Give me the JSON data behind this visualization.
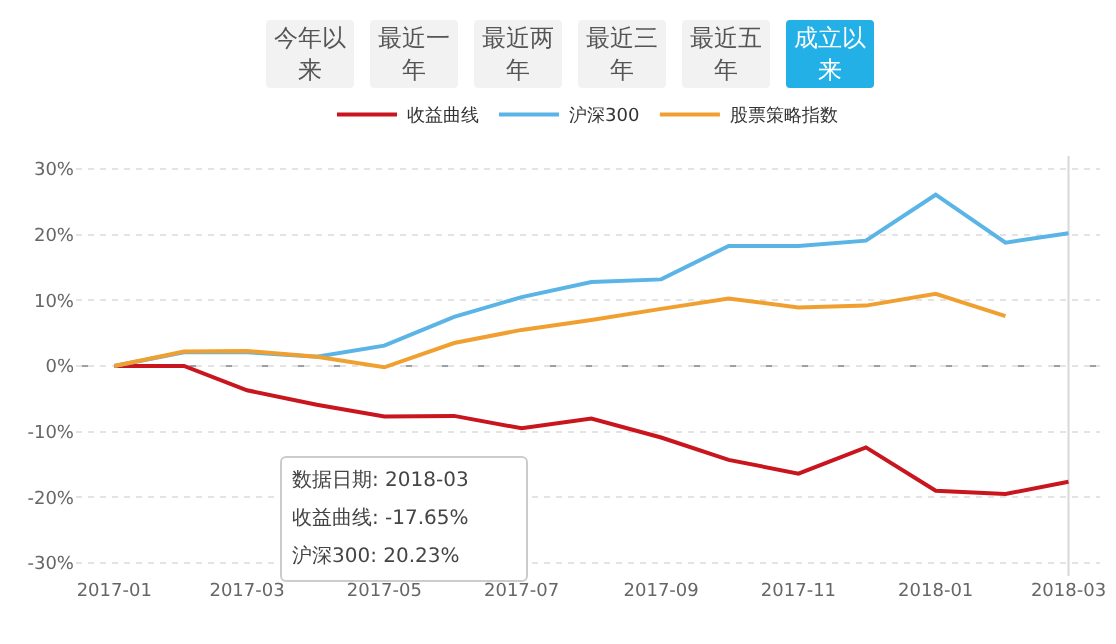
{
  "chart_data": {
    "type": "line",
    "x": [
      "2017-01",
      "2017-02",
      "2017-03",
      "2017-04",
      "2017-05",
      "2017-06",
      "2017-07",
      "2017-08",
      "2017-09",
      "2017-10",
      "2017-11",
      "2017-12",
      "2018-01",
      "2018-02",
      "2018-03"
    ],
    "series": [
      {
        "name": "收益曲线",
        "color": "#c9151e",
        "values": [
          0,
          0,
          -3.7,
          -5.9,
          -7.7,
          -7.6,
          -9.5,
          -8.0,
          -10.9,
          -14.3,
          -16.4,
          -12.4,
          -19,
          -19.5,
          -17.65
        ]
      },
      {
        "name": "沪深300",
        "color": "#5ab4e5",
        "values": [
          0,
          2.1,
          2.1,
          1.4,
          3.1,
          7.5,
          10.5,
          12.8,
          13.2,
          18.3,
          18.3,
          19.1,
          26.1,
          18.8,
          20.23
        ]
      },
      {
        "name": "股票策略指数",
        "color": "#f0a030",
        "values": [
          0,
          2.2,
          2.3,
          1.4,
          -0.2,
          3.5,
          5.5,
          7.0,
          8.7,
          10.3,
          8.9,
          9.2,
          11.0,
          7.6,
          null
        ]
      }
    ],
    "xlim": [
      "2016-12-15",
      "2018-03-15"
    ],
    "xticks": [
      {
        "value": "2017-01",
        "label": "2017-01"
      },
      {
        "value": "2017-03",
        "label": "2017-03"
      },
      {
        "value": "2017-05",
        "label": "2017-05"
      },
      {
        "value": "2017-07",
        "label": "2017-07"
      },
      {
        "value": "2017-09",
        "label": "2017-09"
      },
      {
        "value": "2017-11",
        "label": "2017-11"
      },
      {
        "value": "2018-01",
        "label": "2018-01"
      },
      {
        "value": "2018-03",
        "label": "2018-03"
      }
    ],
    "ylim": [
      -32,
      32
    ],
    "yticks": [
      {
        "value": -30,
        "label": "-30%"
      },
      {
        "value": -20,
        "label": "-20%"
      },
      {
        "value": -10,
        "label": "-10%"
      },
      {
        "value": 0,
        "label": "0%"
      },
      {
        "value": 10,
        "label": "10%"
      },
      {
        "value": 20,
        "label": "20%"
      },
      {
        "value": 30,
        "label": "30%"
      }
    ],
    "grid": "y",
    "legend": "top",
    "marker": "none",
    "line_style": "solid",
    "ref_lines": [
      {
        "axis": "y",
        "value": 0,
        "color": "#9aa0a8",
        "line_style": "dashed"
      },
      {
        "axis": "x",
        "value": "2018-03",
        "color": "#d8d8d8",
        "line_style": "solid"
      }
    ],
    "annotations": [
      "今年以来",
      "最近一年",
      "最近两年",
      "最近三年",
      "最近五年",
      "成立以来",
      "数据日期:  2018-03",
      "收益曲线:  -17.65%",
      "沪深300:  20.23%"
    ]
  }
}
